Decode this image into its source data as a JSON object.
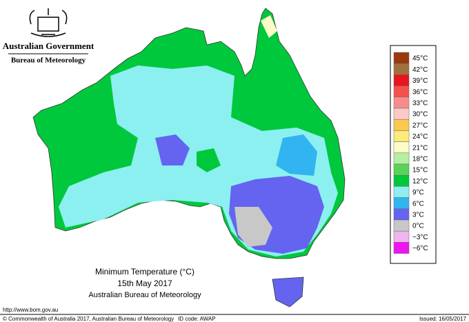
{
  "header": {
    "agency": "Australian Government",
    "bureau": "Bureau of Meteorology"
  },
  "map": {
    "title": "Minimum Temperature (°C)",
    "date": "15th May 2017",
    "source": "Australian Bureau of Meteorology"
  },
  "legend": [
    {
      "label": "45°C",
      "color": "#9a3a0c"
    },
    {
      "label": "42°C",
      "color": "#a0703c"
    },
    {
      "label": "39°C",
      "color": "#e8141e"
    },
    {
      "label": "36°C",
      "color": "#f45050"
    },
    {
      "label": "33°C",
      "color": "#f88c8c"
    },
    {
      "label": "30°C",
      "color": "#fcc8c8"
    },
    {
      "label": "27°C",
      "color": "#fcc850"
    },
    {
      "label": "24°C",
      "color": "#fcec78"
    },
    {
      "label": "21°C",
      "color": "#fcfcc8"
    },
    {
      "label": "18°C",
      "color": "#b4f0a0"
    },
    {
      "label": "15°C",
      "color": "#5ad25a"
    },
    {
      "label": "12°C",
      "color": "#00c83c"
    },
    {
      "label": "9°C",
      "color": "#8cf0f0"
    },
    {
      "label": "6°C",
      "color": "#32b4f0"
    },
    {
      "label": "3°C",
      "color": "#6464f0"
    },
    {
      "label": "0°C",
      "color": "#c8c8c8"
    },
    {
      "label": "−3°C",
      "color": "#f0b4f0"
    },
    {
      "label": "−6°C",
      "color": "#f014f0"
    }
  ],
  "footer": {
    "url": "http://www.bom.gov.au",
    "copyright": "© Commonwealth of Australia 2017, Australian Bureau of Meteorology",
    "id": "ID code: AWAP",
    "issued": "Issued: 16/05/2017"
  }
}
